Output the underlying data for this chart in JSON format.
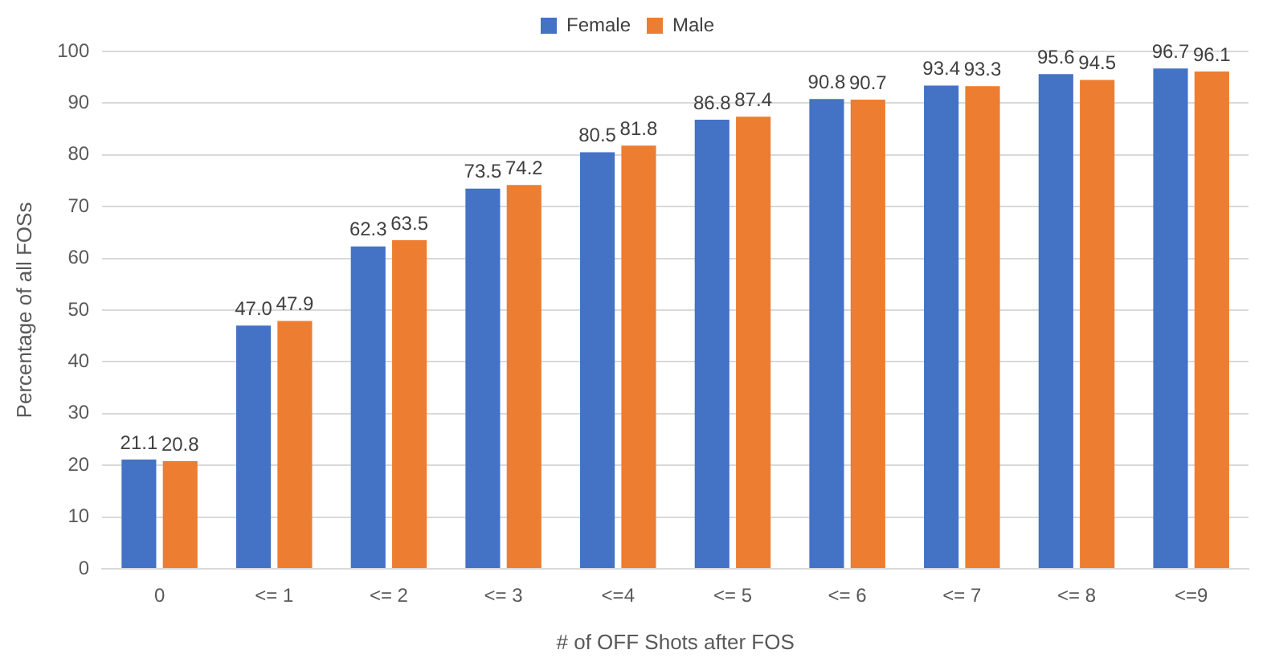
{
  "chart_data": {
    "type": "bar",
    "xlabel": "# of OFF Shots after FOS",
    "ylabel": "Percentage of all FOSs",
    "categories": [
      "0",
      "<= 1",
      "<= 2",
      "<= 3",
      "<=4",
      "<= 5",
      "<= 6",
      "<= 7",
      "<= 8",
      "<=9"
    ],
    "series": [
      {
        "name": "Female",
        "color": "#4472c4",
        "values": [
          21.1,
          47.0,
          62.3,
          73.5,
          80.5,
          86.8,
          90.8,
          93.4,
          95.6,
          96.7
        ],
        "value_labels": [
          "21.1",
          "47.0",
          "62.3",
          "73.5",
          "80.5",
          "86.8",
          "90.8",
          "93.4",
          "95.6",
          "96.7"
        ]
      },
      {
        "name": "Male",
        "color": "#ed7d31",
        "values": [
          20.8,
          47.9,
          63.5,
          74.2,
          81.8,
          87.4,
          90.7,
          93.3,
          94.5,
          96.1
        ],
        "value_labels": [
          "20.8",
          "47.9",
          "63.5",
          "74.2",
          "81.8",
          "87.4",
          "90.7",
          "93.3",
          "94.5",
          "96.1"
        ]
      }
    ],
    "ylim": [
      0,
      100
    ],
    "yticks": [
      0,
      10,
      20,
      30,
      40,
      50,
      60,
      70,
      80,
      90,
      100
    ],
    "grid": "y",
    "legend": "top"
  }
}
